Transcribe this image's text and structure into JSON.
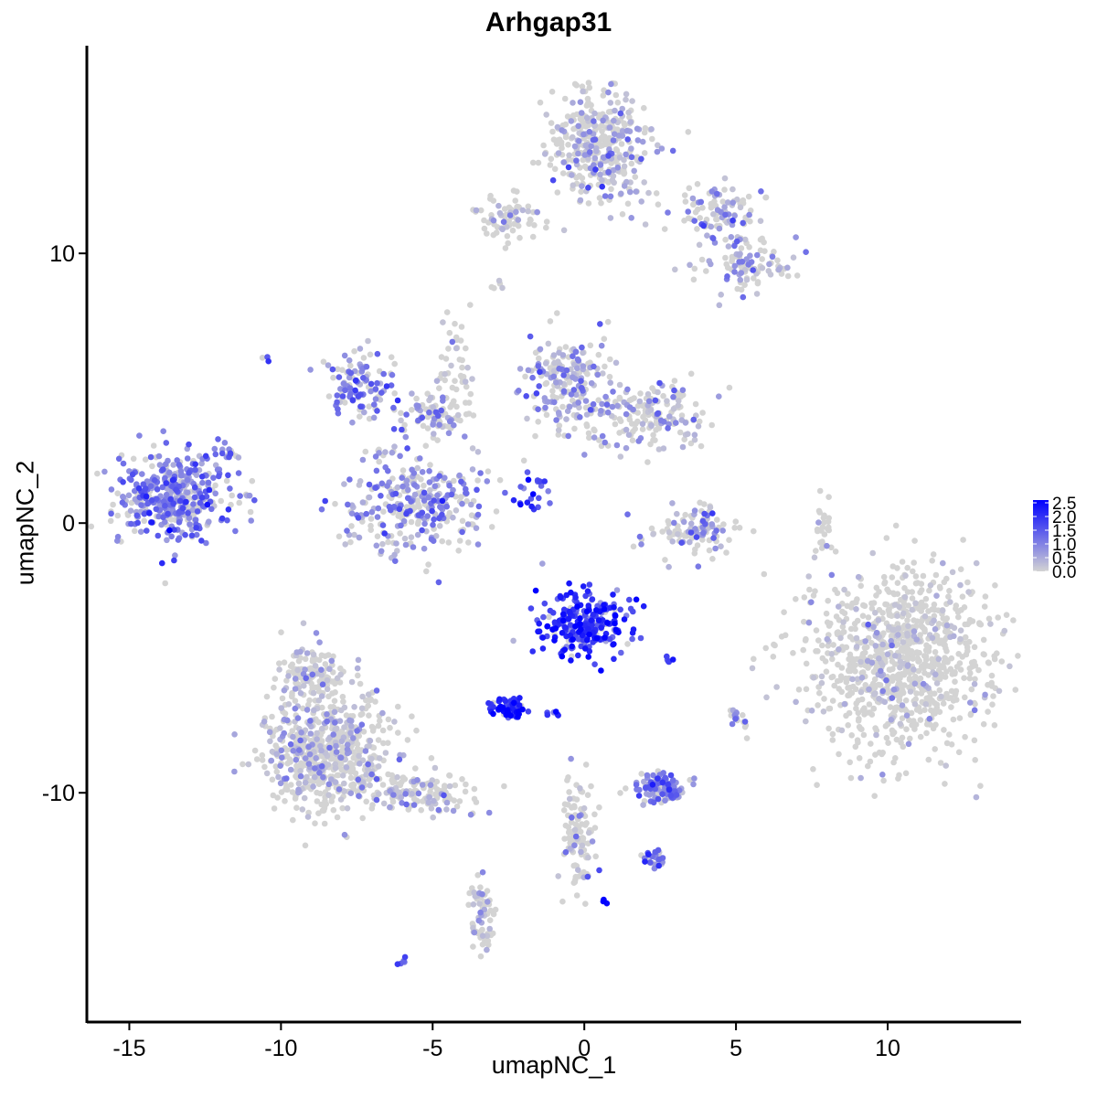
{
  "chart_data": {
    "type": "scatter",
    "title": "Arhgap31",
    "xlabel": "umapNC_1",
    "ylabel": "umapNC_2",
    "xlim": [
      -16.4,
      14.4
    ],
    "ylim": [
      -18.5,
      17.7
    ],
    "x_ticks": [
      -15,
      -10,
      -5,
      0,
      5,
      10
    ],
    "x_tick_labels": [
      "-15",
      "-10",
      "-5",
      "0",
      "5",
      "10"
    ],
    "y_ticks": [
      -10,
      0,
      10
    ],
    "y_tick_labels": [
      "-10",
      "0",
      "10"
    ],
    "grid": false,
    "color_scale": {
      "low_color": "#d3d3d3",
      "high_color": "#0000ff",
      "min": 0,
      "max": 2.6,
      "legend_ticks": [
        "0.0",
        "0.5",
        "1.0",
        "1.5",
        "2.0",
        "2.5"
      ],
      "legend_position": "right"
    },
    "clusters": [
      {
        "center": [
          -13.5,
          1.0
        ],
        "spread": [
          0.9,
          0.8
        ],
        "n": 420,
        "expr_mean": 1.1
      },
      {
        "center": [
          -7.5,
          5.0
        ],
        "spread": [
          0.6,
          0.7
        ],
        "n": 110,
        "expr_mean": 1.0
      },
      {
        "center": [
          -5.5,
          0.7
        ],
        "spread": [
          1.2,
          0.9
        ],
        "n": 320,
        "expr_mean": 0.9
      },
      {
        "center": [
          -5.0,
          4.0
        ],
        "spread": [
          0.6,
          0.4
        ],
        "n": 80,
        "expr_mean": 0.6
      },
      {
        "center": [
          -0.5,
          5.2
        ],
        "spread": [
          0.7,
          0.9
        ],
        "n": 200,
        "expr_mean": 0.7
      },
      {
        "center": [
          2.0,
          4.0
        ],
        "spread": [
          1.0,
          0.6
        ],
        "n": 180,
        "expr_mean": 0.6
      },
      {
        "center": [
          0.5,
          14.0
        ],
        "spread": [
          0.9,
          1.0
        ],
        "n": 380,
        "expr_mean": 0.5
      },
      {
        "center": [
          -2.5,
          11.3
        ],
        "spread": [
          0.6,
          0.4
        ],
        "n": 70,
        "expr_mean": 0.3
      },
      {
        "center": [
          4.5,
          11.5
        ],
        "spread": [
          0.8,
          0.5
        ],
        "n": 90,
        "expr_mean": 0.7
      },
      {
        "center": [
          5.3,
          9.6
        ],
        "spread": [
          0.7,
          0.5
        ],
        "n": 110,
        "expr_mean": 0.6
      },
      {
        "center": [
          3.5,
          -0.3
        ],
        "spread": [
          0.7,
          0.5
        ],
        "n": 110,
        "expr_mean": 0.7
      },
      {
        "center": [
          0.0,
          -3.8
        ],
        "spread": [
          0.7,
          0.6
        ],
        "n": 260,
        "expr_mean": 1.9
      },
      {
        "center": [
          -2.5,
          -6.9
        ],
        "spread": [
          0.3,
          0.2
        ],
        "n": 70,
        "expr_mean": 2.1
      },
      {
        "center": [
          2.5,
          -9.8
        ],
        "spread": [
          0.45,
          0.25
        ],
        "n": 110,
        "expr_mean": 1.0
      },
      {
        "center": [
          10.5,
          -5.0
        ],
        "spread": [
          1.6,
          1.6
        ],
        "n": 950,
        "expr_mean": 0.2
      },
      {
        "center": [
          -8.5,
          -8.5
        ],
        "spread": [
          1.0,
          1.1
        ],
        "n": 620,
        "expr_mean": 0.45
      },
      {
        "center": [
          -9.0,
          -5.6
        ],
        "spread": [
          0.6,
          0.5
        ],
        "n": 120,
        "expr_mean": 0.4
      },
      {
        "center": [
          -5.5,
          -10.0
        ],
        "spread": [
          0.9,
          0.35
        ],
        "n": 150,
        "expr_mean": 0.5
      },
      {
        "center": [
          -0.2,
          -11.5
        ],
        "spread": [
          0.3,
          1.0
        ],
        "n": 110,
        "expr_mean": 0.3
      },
      {
        "center": [
          -3.4,
          -14.5
        ],
        "spread": [
          0.2,
          0.6
        ],
        "n": 60,
        "expr_mean": 0.4
      },
      {
        "center": [
          2.3,
          -12.5
        ],
        "spread": [
          0.2,
          0.2
        ],
        "n": 25,
        "expr_mean": 1.1
      },
      {
        "center": [
          5.0,
          -7.2
        ],
        "spread": [
          0.15,
          0.2
        ],
        "n": 18,
        "expr_mean": 0.8
      },
      {
        "center": [
          7.9,
          -0.3
        ],
        "spread": [
          0.15,
          0.6
        ],
        "n": 25,
        "expr_mean": 0.1
      },
      {
        "center": [
          -1.8,
          1.2
        ],
        "spread": [
          0.3,
          0.4
        ],
        "n": 22,
        "expr_mean": 1.6
      },
      {
        "center": [
          -4.2,
          5.5
        ],
        "spread": [
          0.3,
          1.5
        ],
        "n": 50,
        "expr_mean": 0.2
      },
      {
        "center": [
          -6.0,
          -16.3
        ],
        "spread": [
          0.1,
          0.1
        ],
        "n": 6,
        "expr_mean": 1.3
      },
      {
        "center": [
          -11.7,
          2.6
        ],
        "spread": [
          0.2,
          0.2
        ],
        "n": 12,
        "expr_mean": 1.0
      },
      {
        "center": [
          0.6,
          -14.0
        ],
        "spread": [
          0.06,
          0.06
        ],
        "n": 4,
        "expr_mean": 2.0
      },
      {
        "center": [
          2.8,
          -5.1
        ],
        "spread": [
          0.1,
          0.05
        ],
        "n": 5,
        "expr_mean": 2.0
      },
      {
        "center": [
          -10.5,
          6.1
        ],
        "spread": [
          0.05,
          0.05
        ],
        "n": 3,
        "expr_mean": 1.5
      },
      {
        "center": [
          -2.8,
          8.8
        ],
        "spread": [
          0.1,
          0.1
        ],
        "n": 5,
        "expr_mean": 0.8
      },
      {
        "center": [
          -1.0,
          -7.0
        ],
        "spread": [
          0.15,
          0.1
        ],
        "n": 6,
        "expr_mean": 1.8
      }
    ]
  }
}
